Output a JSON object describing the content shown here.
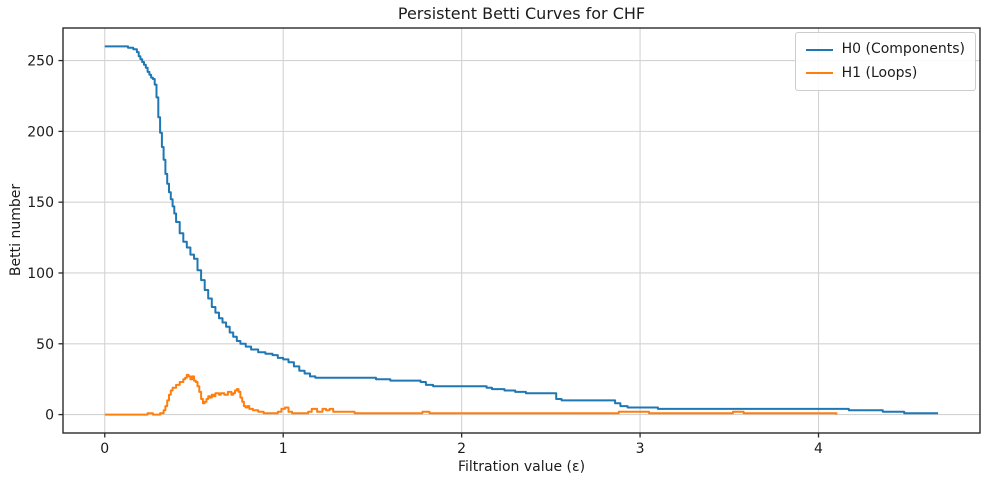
{
  "chart_data": {
    "type": "line",
    "title": "Persistent Betti Curves for CHF",
    "xlabel": "Filtration value (ε)",
    "ylabel": "Betti number",
    "xlim": [
      -0.234,
      4.905
    ],
    "ylim": [
      -13,
      273
    ],
    "xticks": [
      0,
      1,
      2,
      3,
      4
    ],
    "yticks": [
      0,
      50,
      100,
      150,
      200,
      250
    ],
    "grid": true,
    "grid_color": "#d3d3d3",
    "spine_color": "#2b2b2b",
    "legend_position": "upper right",
    "line_style": "step-post",
    "series": [
      {
        "id": "h0",
        "name": "H0 (Components)",
        "color": "#1f77b4",
        "points": [
          [
            0.0,
            260
          ],
          [
            0.08,
            260
          ],
          [
            0.13,
            259
          ],
          [
            0.16,
            258
          ],
          [
            0.18,
            256
          ],
          [
            0.19,
            253
          ],
          [
            0.2,
            251
          ],
          [
            0.21,
            249
          ],
          [
            0.22,
            247
          ],
          [
            0.23,
            245
          ],
          [
            0.24,
            242
          ],
          [
            0.25,
            240
          ],
          [
            0.26,
            238
          ],
          [
            0.27,
            237
          ],
          [
            0.28,
            233
          ],
          [
            0.29,
            224
          ],
          [
            0.3,
            210
          ],
          [
            0.31,
            199
          ],
          [
            0.32,
            189
          ],
          [
            0.33,
            180
          ],
          [
            0.34,
            170
          ],
          [
            0.35,
            163
          ],
          [
            0.36,
            157
          ],
          [
            0.37,
            152
          ],
          [
            0.38,
            147
          ],
          [
            0.39,
            142
          ],
          [
            0.4,
            136
          ],
          [
            0.42,
            128
          ],
          [
            0.44,
            122
          ],
          [
            0.46,
            118
          ],
          [
            0.48,
            113
          ],
          [
            0.5,
            110
          ],
          [
            0.52,
            102
          ],
          [
            0.54,
            95
          ],
          [
            0.56,
            88
          ],
          [
            0.58,
            82
          ],
          [
            0.6,
            76
          ],
          [
            0.62,
            72
          ],
          [
            0.64,
            68
          ],
          [
            0.66,
            65
          ],
          [
            0.68,
            62
          ],
          [
            0.7,
            58
          ],
          [
            0.72,
            55
          ],
          [
            0.74,
            52
          ],
          [
            0.76,
            50
          ],
          [
            0.79,
            48
          ],
          [
            0.82,
            46
          ],
          [
            0.86,
            44
          ],
          [
            0.9,
            43
          ],
          [
            0.94,
            42
          ],
          [
            0.97,
            40
          ],
          [
            1.0,
            39
          ],
          [
            1.03,
            37
          ],
          [
            1.06,
            34
          ],
          [
            1.09,
            31
          ],
          [
            1.12,
            29
          ],
          [
            1.15,
            27
          ],
          [
            1.18,
            26
          ],
          [
            1.49,
            26
          ],
          [
            1.52,
            25
          ],
          [
            1.6,
            24
          ],
          [
            1.77,
            23
          ],
          [
            1.8,
            21
          ],
          [
            1.84,
            20
          ],
          [
            2.14,
            19
          ],
          [
            2.17,
            18
          ],
          [
            2.24,
            17
          ],
          [
            2.3,
            16
          ],
          [
            2.36,
            15
          ],
          [
            2.53,
            11
          ],
          [
            2.56,
            10
          ],
          [
            2.86,
            8
          ],
          [
            2.89,
            6
          ],
          [
            2.93,
            5
          ],
          [
            3.1,
            4
          ],
          [
            4.14,
            4
          ],
          [
            4.17,
            3
          ],
          [
            4.36,
            2
          ],
          [
            4.48,
            1
          ],
          [
            4.6,
            1
          ],
          [
            4.67,
            1
          ]
        ]
      },
      {
        "id": "h1",
        "name": "H1 (Loops)",
        "color": "#ff7f0e",
        "points": [
          [
            0.0,
            0
          ],
          [
            0.24,
            1
          ],
          [
            0.27,
            0
          ],
          [
            0.31,
            1
          ],
          [
            0.33,
            3
          ],
          [
            0.34,
            6
          ],
          [
            0.35,
            10
          ],
          [
            0.36,
            14
          ],
          [
            0.37,
            17
          ],
          [
            0.38,
            19
          ],
          [
            0.4,
            21
          ],
          [
            0.42,
            23
          ],
          [
            0.44,
            25
          ],
          [
            0.45,
            26
          ],
          [
            0.46,
            28
          ],
          [
            0.47,
            27
          ],
          [
            0.48,
            25
          ],
          [
            0.49,
            27
          ],
          [
            0.5,
            24
          ],
          [
            0.51,
            23
          ],
          [
            0.52,
            20
          ],
          [
            0.53,
            16
          ],
          [
            0.54,
            11
          ],
          [
            0.55,
            8
          ],
          [
            0.56,
            9
          ],
          [
            0.57,
            11
          ],
          [
            0.58,
            13
          ],
          [
            0.59,
            12
          ],
          [
            0.6,
            14
          ],
          [
            0.61,
            13
          ],
          [
            0.62,
            15
          ],
          [
            0.64,
            14
          ],
          [
            0.65,
            15
          ],
          [
            0.67,
            14
          ],
          [
            0.69,
            16
          ],
          [
            0.71,
            14
          ],
          [
            0.72,
            15
          ],
          [
            0.73,
            17
          ],
          [
            0.74,
            18
          ],
          [
            0.75,
            16
          ],
          [
            0.76,
            12
          ],
          [
            0.77,
            9
          ],
          [
            0.78,
            6
          ],
          [
            0.79,
            5
          ],
          [
            0.8,
            6
          ],
          [
            0.81,
            4
          ],
          [
            0.83,
            3
          ],
          [
            0.86,
            2
          ],
          [
            0.89,
            1
          ],
          [
            0.97,
            2
          ],
          [
            0.99,
            4
          ],
          [
            1.01,
            5
          ],
          [
            1.03,
            2
          ],
          [
            1.05,
            1
          ],
          [
            1.14,
            2
          ],
          [
            1.16,
            4
          ],
          [
            1.19,
            2
          ],
          [
            1.22,
            4
          ],
          [
            1.24,
            3
          ],
          [
            1.26,
            4
          ],
          [
            1.28,
            2
          ],
          [
            1.34,
            2
          ],
          [
            1.4,
            1
          ],
          [
            1.78,
            2
          ],
          [
            1.82,
            1
          ],
          [
            2.88,
            2
          ],
          [
            3.05,
            1
          ],
          [
            3.52,
            2
          ],
          [
            3.58,
            1
          ],
          [
            4.05,
            1
          ],
          [
            4.08,
            1
          ],
          [
            4.1,
            0
          ]
        ]
      }
    ]
  }
}
